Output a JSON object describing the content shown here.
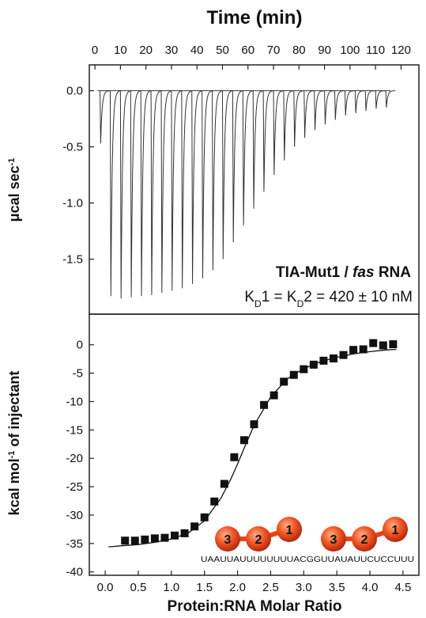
{
  "chart_data": [
    {
      "type": "thermogram",
      "title": "Time (min)",
      "ylabel": [
        "μcal sec",
        "-1"
      ],
      "annotation": [
        "TIA-Mut1 / ",
        "fas",
        " RNA"
      ],
      "kd_label": [
        "K",
        "D",
        "1 = K",
        "D",
        "2 = 420 ± 10 nM"
      ],
      "color": "#333333",
      "x": [
        2,
        6,
        10,
        14,
        18,
        22,
        26,
        30,
        34,
        38,
        42,
        46,
        50,
        54,
        58,
        62,
        66,
        70,
        74,
        78,
        82,
        86,
        90,
        94,
        98,
        102,
        106,
        110,
        114
      ],
      "values": [
        -0.47,
        -1.83,
        -1.85,
        -1.84,
        -1.83,
        -1.82,
        -1.8,
        -1.78,
        -1.76,
        -1.72,
        -1.67,
        -1.6,
        -1.5,
        -1.35,
        -1.2,
        -1.05,
        -0.9,
        -0.75,
        -0.62,
        -0.5,
        -0.42,
        -0.35,
        -0.3,
        -0.26,
        -0.22,
        -0.2,
        -0.18,
        -0.16,
        -0.15
      ],
      "xlim": [
        -2.2,
        127
      ],
      "ylim": [
        -1.99,
        0.23
      ],
      "xticks": [
        0,
        10,
        20,
        30,
        40,
        50,
        60,
        70,
        80,
        90,
        100,
        110,
        120
      ],
      "yticks": [
        {
          "value": 0,
          "label": "0.0"
        },
        {
          "value": -0.5,
          "label": "-0.5"
        },
        {
          "value": -1,
          "label": "-1.0"
        },
        {
          "value": -1.5,
          "label": "-1.5"
        }
      ]
    },
    {
      "type": "isotherm",
      "xlabel": "Protein:RNA Molar Ratio",
      "ylabel": [
        "kcal mol",
        "-1",
        " of injectant"
      ],
      "color": "#111111",
      "x": [
        0.3,
        0.45,
        0.6,
        0.75,
        0.9,
        1.05,
        1.2,
        1.35,
        1.5,
        1.65,
        1.8,
        1.95,
        2.1,
        2.25,
        2.4,
        2.55,
        2.7,
        2.85,
        3.0,
        3.15,
        3.3,
        3.45,
        3.6,
        3.75,
        3.9,
        4.05,
        4.2,
        4.35
      ],
      "values": [
        -34.5,
        -34.5,
        -34.3,
        -34.1,
        -34.0,
        -33.6,
        -33.2,
        -32.0,
        -30.4,
        -27.6,
        -24.5,
        -19.8,
        -16.8,
        -14.0,
        -10.6,
        -8.9,
        -6.5,
        -5.3,
        -4.3,
        -3.5,
        -2.8,
        -2.4,
        -1.8,
        -0.9,
        -0.8,
        0.3,
        -0.1,
        0.1
      ],
      "fit": {
        "x": [
          0.05,
          0.25,
          0.5,
          0.75,
          1.0,
          1.25,
          1.5,
          1.75,
          1.9,
          2.0,
          2.1,
          2.25,
          2.5,
          2.75,
          3.0,
          3.25,
          3.5,
          3.75,
          4.0,
          4.25,
          4.4
        ],
        "values": [
          -35.6,
          -35.4,
          -35.2,
          -34.8,
          -34.2,
          -33.2,
          -31.0,
          -27.0,
          -23.6,
          -21.0,
          -18.2,
          -14.2,
          -9.2,
          -6.0,
          -4.2,
          -3.0,
          -2.2,
          -1.6,
          -1.2,
          -0.9,
          -0.8
        ]
      },
      "xlim": [
        -0.24,
        4.74
      ],
      "ylim": [
        -40.6,
        5.4
      ],
      "xticks": [
        {
          "value": 0,
          "label": "0.0"
        },
        {
          "value": 0.5,
          "label": "0.5"
        },
        {
          "value": 1,
          "label": "1.0"
        },
        {
          "value": 1.5,
          "label": "1.5"
        },
        {
          "value": 2,
          "label": "2.0"
        },
        {
          "value": 2.5,
          "label": "2.5"
        },
        {
          "value": 3,
          "label": "3.0"
        },
        {
          "value": 3.5,
          "label": "3.5"
        },
        {
          "value": 4,
          "label": "4.0"
        },
        {
          "value": 4.5,
          "label": "4.5"
        }
      ],
      "yticks": [
        0,
        -5,
        -10,
        -15,
        -20,
        -25,
        -30,
        -35,
        -40
      ],
      "constructs": [
        {
          "domains": [
            "3",
            "2",
            "1"
          ]
        },
        {
          "domains": [
            "3",
            "2",
            "1"
          ]
        }
      ],
      "sequence": "UAAUUAUUUUUUUUACGGUUAUAUUCUCCUUU"
    }
  ]
}
